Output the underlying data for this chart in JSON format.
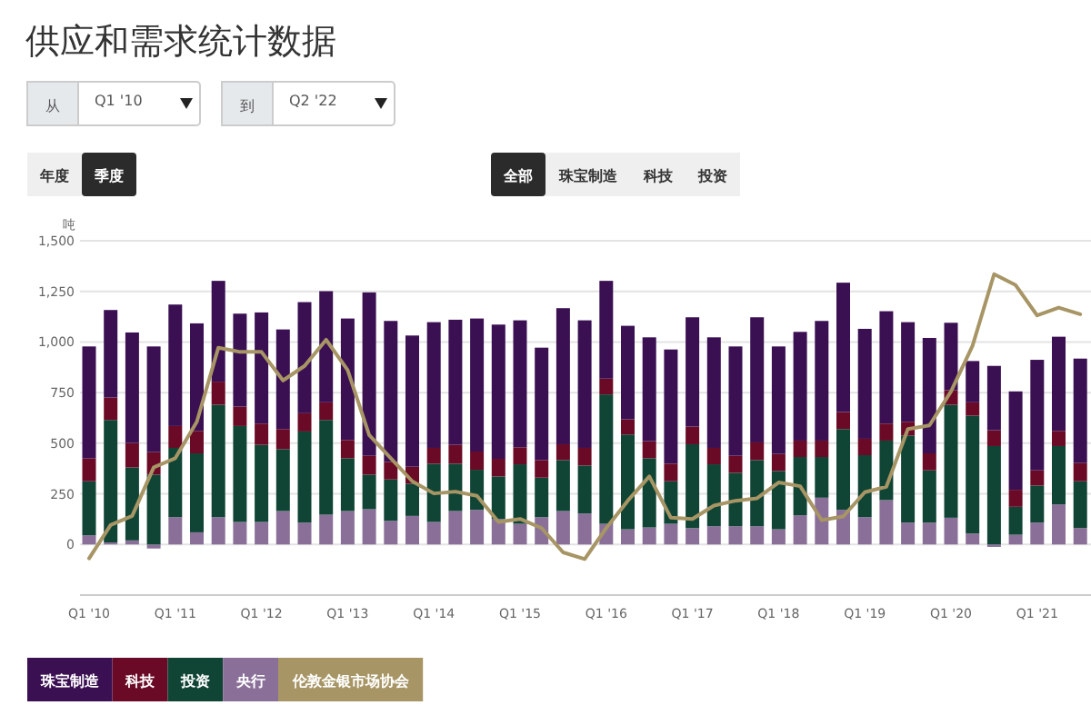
{
  "chart_data": {
    "type": "bar",
    "title": "供应和需求统计数据",
    "ylabel": "吨",
    "stacked": true,
    "grid": "y",
    "legend": "bottom",
    "annotations": [
      "从",
      "Q1 '10",
      "到",
      "Q2 '22",
      "年度",
      "季度",
      "全部",
      "珠宝制造",
      "科技",
      "投资"
    ],
    "categories": [
      "Q1 '10",
      null,
      null,
      null,
      "Q1 '11",
      null,
      null,
      null,
      "Q1 '12",
      null,
      null,
      null,
      "Q1 '13",
      null,
      null,
      null,
      "Q1 '14",
      null,
      null,
      null,
      "Q1 '15",
      null,
      null,
      null,
      "Q1 '16",
      null,
      null,
      null,
      "Q1 '17",
      null,
      null,
      null,
      "Q1 '18",
      null,
      null,
      null,
      "Q1 '19",
      null,
      null,
      null,
      "Q1 '20",
      null,
      null,
      null,
      "Q1 '21",
      null,
      null
    ],
    "ylim": [
      -250,
      1500
    ],
    "yticks": [
      0,
      250,
      500,
      750,
      {
        "value": 1000,
        "label": "1,000"
      },
      {
        "value": 1250,
        "label": "1,250"
      },
      {
        "value": 1500,
        "label": "1,500"
      }
    ],
    "series": [
      {
        "name": "央行",
        "color": "#8a7098",
        "values": [
          45,
          10,
          20,
          -20,
          135,
          60,
          135,
          111,
          111,
          165,
          108,
          147,
          165,
          174,
          117,
          141,
          111,
          165,
          171,
          126,
          102,
          135,
          165,
          153,
          102,
          75,
          84,
          102,
          81,
          90,
          90,
          90,
          75,
          144,
          231,
          171,
          135,
          219,
          108,
          108,
          132,
          54,
          -12,
          48,
          108,
          198,
          81
        ]
      },
      {
        "name": "投资",
        "color": "#104535",
        "values": [
          267,
          605,
          361,
          345,
          342,
          390,
          555,
          474,
          381,
          306,
          450,
          468,
          261,
          171,
          204,
          159,
          288,
          234,
          198,
          210,
          294,
          195,
          252,
          237,
          639,
          468,
          342,
          210,
          414,
          306,
          264,
          327,
          288,
          288,
          201,
          399,
          306,
          294,
          430,
          258,
          558,
          582,
          486,
          138,
          183,
          288,
          231
        ]
      },
      {
        "name": "科技",
        "color": "#6a0a26",
        "values": [
          114,
          111,
          120,
          111,
          108,
          111,
          114,
          96,
          105,
          99,
          90,
          87,
          90,
          93,
          87,
          84,
          78,
          93,
          90,
          87,
          84,
          87,
          78,
          87,
          78,
          75,
          84,
          87,
          87,
          81,
          84,
          87,
          84,
          81,
          81,
          84,
          81,
          84,
          68,
          84,
          72,
          66,
          78,
          84,
          75,
          75,
          90
        ]
      },
      {
        "name": "珠宝制造",
        "color": "#3b1053",
        "values": [
          552,
          432,
          546,
          522,
          600,
          531,
          498,
          459,
          549,
          492,
          549,
          549,
          600,
          807,
          696,
          648,
          621,
          618,
          657,
          663,
          627,
          555,
          672,
          630,
          483,
          462,
          513,
          564,
          540,
          546,
          540,
          618,
          531,
          537,
          591,
          639,
          543,
          555,
          492,
          570,
          333,
          204,
          318,
          486,
          546,
          465,
          516
        ]
      },
      {
        "name": "伦敦金银市场协会",
        "type": "line",
        "color": "#a79565",
        "values": [
          -69,
          96,
          141,
          381,
          426,
          606,
          972,
          951,
          951,
          810,
          882,
          1011,
          861,
          540,
          426,
          312,
          252,
          261,
          240,
          111,
          126,
          81,
          -39,
          -72,
          81,
          216,
          336,
          132,
          126,
          192,
          216,
          228,
          306,
          288,
          120,
          138,
          258,
          285,
          570,
          588,
          756,
          981,
          1335,
          1281,
          1131,
          1170,
          1137
        ]
      }
    ]
  }
}
